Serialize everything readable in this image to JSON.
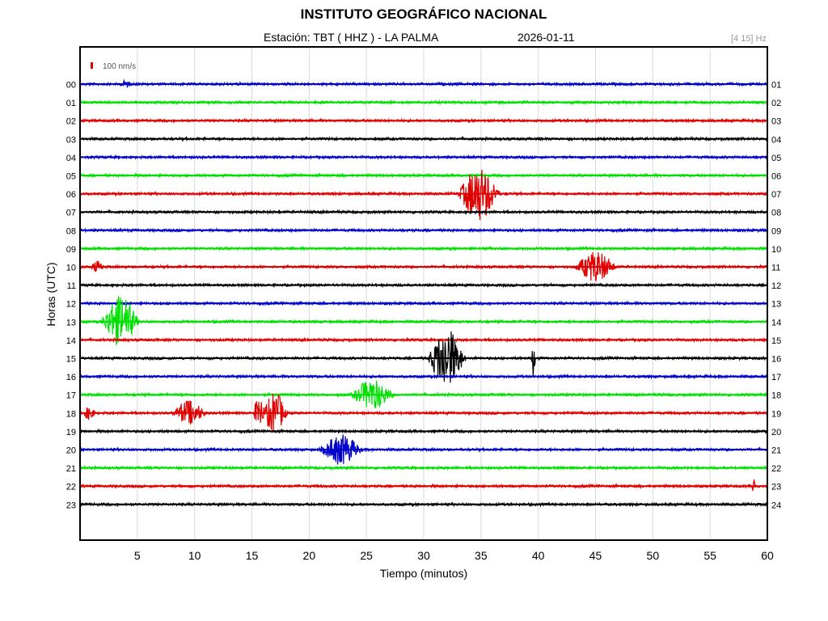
{
  "header": {
    "title": "INSTITUTO GEOGRÁFICO NACIONAL",
    "station": "Estación:  TBT ( HHZ ) - LA PALMA",
    "date": "2026-01-11",
    "filter": "[4 15] Hz"
  },
  "chart_data": {
    "type": "line",
    "title": "INSTITUTO GEOGRÁFICO NACIONAL",
    "xlabel": "Tiempo (minutos)",
    "ylabel": "Horas (UTC)",
    "xlim": [
      0,
      60
    ],
    "x_ticks": [
      5,
      10,
      15,
      20,
      25,
      30,
      35,
      40,
      45,
      50,
      55,
      60
    ],
    "scale_label": "100 nm/s",
    "scale_color": "#e00000",
    "grid": true,
    "colors": [
      "#0000cc",
      "#00e000",
      "#e00000",
      "#000000"
    ],
    "rows": [
      {
        "left": "00",
        "right": "01"
      },
      {
        "left": "01",
        "right": "02"
      },
      {
        "left": "02",
        "right": "03"
      },
      {
        "left": "03",
        "right": "04"
      },
      {
        "left": "04",
        "right": "05"
      },
      {
        "left": "05",
        "right": "06"
      },
      {
        "left": "06",
        "right": "07"
      },
      {
        "left": "07",
        "right": "08"
      },
      {
        "left": "08",
        "right": "09"
      },
      {
        "left": "09",
        "right": "10"
      },
      {
        "left": "10",
        "right": "11"
      },
      {
        "left": "11",
        "right": "12"
      },
      {
        "left": "12",
        "right": "13"
      },
      {
        "left": "13",
        "right": "14"
      },
      {
        "left": "14",
        "right": "15"
      },
      {
        "left": "15",
        "right": "16"
      },
      {
        "left": "16",
        "right": "17"
      },
      {
        "left": "17",
        "right": "18"
      },
      {
        "left": "18",
        "right": "19"
      },
      {
        "left": "19",
        "right": "20"
      },
      {
        "left": "20",
        "right": "21"
      },
      {
        "left": "21",
        "right": "22"
      },
      {
        "left": "22",
        "right": "23"
      },
      {
        "left": "23",
        "right": "24"
      }
    ],
    "events": [
      {
        "hour": 0,
        "minute": 4.0,
        "amplitude": 0.2,
        "duration": 1.0
      },
      {
        "hour": 6,
        "minute": 34.8,
        "amplitude": 1.8,
        "duration": 4.0
      },
      {
        "hour": 10,
        "minute": 1.5,
        "amplitude": 0.35,
        "duration": 1.2
      },
      {
        "hour": 10,
        "minute": 45.0,
        "amplitude": 1.0,
        "duration": 4.0
      },
      {
        "hour": 13,
        "minute": 3.5,
        "amplitude": 1.7,
        "duration": 3.6
      },
      {
        "hour": 15,
        "minute": 32.0,
        "amplitude": 2.0,
        "duration": 3.6
      },
      {
        "hour": 15,
        "minute": 39.6,
        "amplitude": 1.3,
        "duration": 0.4
      },
      {
        "hour": 17,
        "minute": 25.5,
        "amplitude": 1.0,
        "duration": 4.0
      },
      {
        "hour": 18,
        "minute": 0.8,
        "amplitude": 0.4,
        "duration": 1.2
      },
      {
        "hour": 18,
        "minute": 9.5,
        "amplitude": 0.8,
        "duration": 3.2
      },
      {
        "hour": 18,
        "minute": 15.6,
        "amplitude": 1.2,
        "duration": 1.0
      },
      {
        "hour": 18,
        "minute": 17.0,
        "amplitude": 1.4,
        "duration": 2.4
      },
      {
        "hour": 20,
        "minute": 22.8,
        "amplitude": 1.0,
        "duration": 4.0
      },
      {
        "hour": 22,
        "minute": 58.8,
        "amplitude": 0.5,
        "duration": 0.3
      }
    ]
  }
}
